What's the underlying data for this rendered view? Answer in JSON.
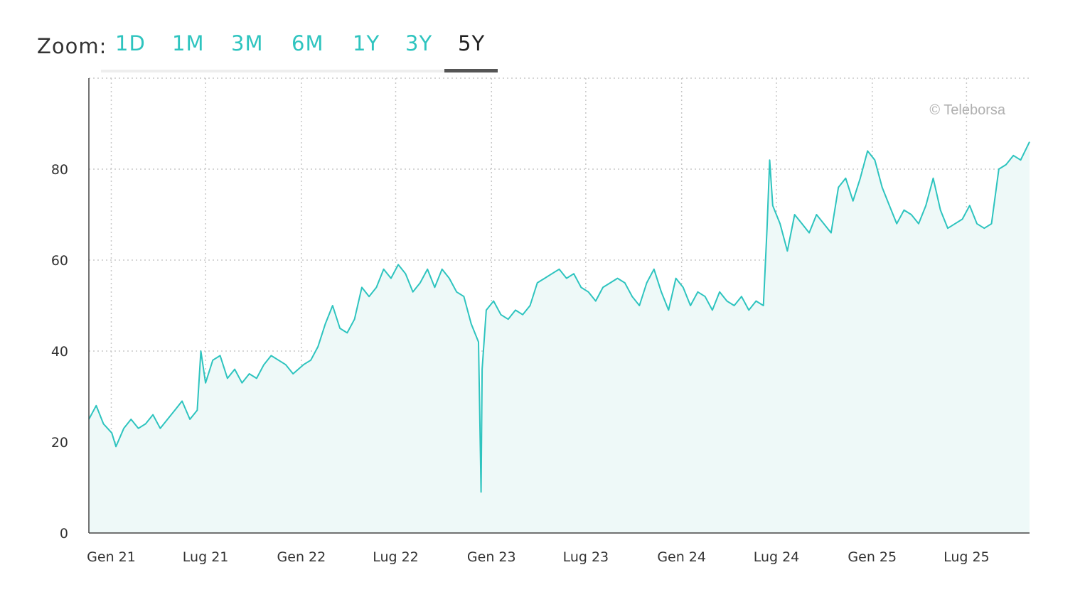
{
  "zoom": {
    "label": "Zoom:",
    "options": [
      "1D",
      "1M",
      "3M",
      "6M",
      "1Y",
      "3Y",
      "5Y"
    ],
    "selected": "5Y"
  },
  "colors": {
    "line": "#2ec4bf",
    "fill": "#eef9f8",
    "active_tab": "#222222",
    "tab": "#2ec4bf"
  },
  "chart_data": {
    "type": "area",
    "credit": "© Teleborsa",
    "ylim": [
      0,
      100
    ],
    "yticks": [
      0,
      20,
      40,
      60,
      80
    ],
    "xlim": [
      "2020-11-19",
      "2025-10-30"
    ],
    "xticks": [
      {
        "date": "2021-01-01",
        "label": "Gen 21"
      },
      {
        "date": "2021-07-01",
        "label": "Lug 21"
      },
      {
        "date": "2022-01-01",
        "label": "Gen 22"
      },
      {
        "date": "2022-07-01",
        "label": "Lug 22"
      },
      {
        "date": "2023-01-01",
        "label": "Gen 23"
      },
      {
        "date": "2023-07-01",
        "label": "Lug 23"
      },
      {
        "date": "2024-01-01",
        "label": "Gen 24"
      },
      {
        "date": "2024-07-01",
        "label": "Lug 24"
      },
      {
        "date": "2025-01-01",
        "label": "Gen 25"
      },
      {
        "date": "2025-07-01",
        "label": "Lug 25"
      }
    ],
    "grid": true,
    "series": [
      {
        "points": [
          [
            "2020-11-19",
            25
          ],
          [
            "2020-12-03",
            28
          ],
          [
            "2020-12-17",
            24
          ],
          [
            "2021-01-02",
            22
          ],
          [
            "2021-01-10",
            19
          ],
          [
            "2021-01-25",
            23
          ],
          [
            "2021-02-08",
            25
          ],
          [
            "2021-02-22",
            23
          ],
          [
            "2021-03-08",
            24
          ],
          [
            "2021-03-22",
            26
          ],
          [
            "2021-04-05",
            23
          ],
          [
            "2021-04-19",
            25
          ],
          [
            "2021-05-03",
            27
          ],
          [
            "2021-05-17",
            29
          ],
          [
            "2021-06-01",
            25
          ],
          [
            "2021-06-15",
            27
          ],
          [
            "2021-06-22",
            40
          ],
          [
            "2021-07-01",
            33
          ],
          [
            "2021-07-15",
            38
          ],
          [
            "2021-07-29",
            39
          ],
          [
            "2021-08-12",
            34
          ],
          [
            "2021-08-26",
            36
          ],
          [
            "2021-09-09",
            33
          ],
          [
            "2021-09-23",
            35
          ],
          [
            "2021-10-07",
            34
          ],
          [
            "2021-10-21",
            37
          ],
          [
            "2021-11-04",
            39
          ],
          [
            "2021-11-18",
            38
          ],
          [
            "2021-12-02",
            37
          ],
          [
            "2021-12-16",
            35
          ],
          [
            "2022-01-05",
            37
          ],
          [
            "2022-01-19",
            38
          ],
          [
            "2022-02-02",
            41
          ],
          [
            "2022-02-16",
            46
          ],
          [
            "2022-03-02",
            50
          ],
          [
            "2022-03-16",
            45
          ],
          [
            "2022-03-30",
            44
          ],
          [
            "2022-04-13",
            47
          ],
          [
            "2022-04-27",
            54
          ],
          [
            "2022-05-11",
            52
          ],
          [
            "2022-05-25",
            54
          ],
          [
            "2022-06-08",
            58
          ],
          [
            "2022-06-22",
            56
          ],
          [
            "2022-07-06",
            59
          ],
          [
            "2022-07-20",
            57
          ],
          [
            "2022-08-03",
            53
          ],
          [
            "2022-08-17",
            55
          ],
          [
            "2022-08-31",
            58
          ],
          [
            "2022-09-14",
            54
          ],
          [
            "2022-09-28",
            58
          ],
          [
            "2022-10-12",
            56
          ],
          [
            "2022-10-26",
            53
          ],
          [
            "2022-11-09",
            52
          ],
          [
            "2022-11-23",
            46
          ],
          [
            "2022-12-07",
            42
          ],
          [
            "2022-12-12",
            9
          ],
          [
            "2022-12-14",
            36
          ],
          [
            "2022-12-22",
            49
          ],
          [
            "2023-01-05",
            51
          ],
          [
            "2023-01-19",
            48
          ],
          [
            "2023-02-02",
            47
          ],
          [
            "2023-02-16",
            49
          ],
          [
            "2023-03-02",
            48
          ],
          [
            "2023-03-16",
            50
          ],
          [
            "2023-03-30",
            55
          ],
          [
            "2023-04-13",
            56
          ],
          [
            "2023-04-27",
            57
          ],
          [
            "2023-05-11",
            58
          ],
          [
            "2023-05-25",
            56
          ],
          [
            "2023-06-08",
            57
          ],
          [
            "2023-06-22",
            54
          ],
          [
            "2023-07-06",
            53
          ],
          [
            "2023-07-20",
            51
          ],
          [
            "2023-08-03",
            54
          ],
          [
            "2023-08-17",
            55
          ],
          [
            "2023-08-31",
            56
          ],
          [
            "2023-09-14",
            55
          ],
          [
            "2023-09-28",
            52
          ],
          [
            "2023-10-12",
            50
          ],
          [
            "2023-10-26",
            55
          ],
          [
            "2023-11-09",
            58
          ],
          [
            "2023-11-23",
            53
          ],
          [
            "2023-12-07",
            49
          ],
          [
            "2023-12-21",
            56
          ],
          [
            "2024-01-04",
            54
          ],
          [
            "2024-01-18",
            50
          ],
          [
            "2024-02-01",
            53
          ],
          [
            "2024-02-15",
            52
          ],
          [
            "2024-02-29",
            49
          ],
          [
            "2024-03-14",
            53
          ],
          [
            "2024-03-28",
            51
          ],
          [
            "2024-04-11",
            50
          ],
          [
            "2024-04-25",
            52
          ],
          [
            "2024-05-09",
            49
          ],
          [
            "2024-05-23",
            51
          ],
          [
            "2024-06-06",
            50
          ],
          [
            "2024-06-13",
            67
          ],
          [
            "2024-06-18",
            82
          ],
          [
            "2024-06-24",
            72
          ],
          [
            "2024-07-08",
            68
          ],
          [
            "2024-07-22",
            62
          ],
          [
            "2024-08-05",
            70
          ],
          [
            "2024-08-19",
            68
          ],
          [
            "2024-09-02",
            66
          ],
          [
            "2024-09-16",
            70
          ],
          [
            "2024-09-30",
            68
          ],
          [
            "2024-10-14",
            66
          ],
          [
            "2024-10-28",
            76
          ],
          [
            "2024-11-11",
            78
          ],
          [
            "2024-11-25",
            73
          ],
          [
            "2024-12-09",
            78
          ],
          [
            "2024-12-23",
            84
          ],
          [
            "2025-01-06",
            82
          ],
          [
            "2025-01-20",
            76
          ],
          [
            "2025-02-03",
            72
          ],
          [
            "2025-02-17",
            68
          ],
          [
            "2025-03-03",
            71
          ],
          [
            "2025-03-17",
            70
          ],
          [
            "2025-03-31",
            68
          ],
          [
            "2025-04-14",
            72
          ],
          [
            "2025-04-28",
            78
          ],
          [
            "2025-05-12",
            71
          ],
          [
            "2025-05-26",
            67
          ],
          [
            "2025-06-09",
            68
          ],
          [
            "2025-06-23",
            69
          ],
          [
            "2025-07-07",
            72
          ],
          [
            "2025-07-21",
            68
          ],
          [
            "2025-08-04",
            67
          ],
          [
            "2025-08-18",
            68
          ],
          [
            "2025-09-01",
            80
          ],
          [
            "2025-09-15",
            81
          ],
          [
            "2025-09-29",
            83
          ],
          [
            "2025-10-13",
            82
          ],
          [
            "2025-10-30",
            86
          ]
        ]
      }
    ]
  }
}
